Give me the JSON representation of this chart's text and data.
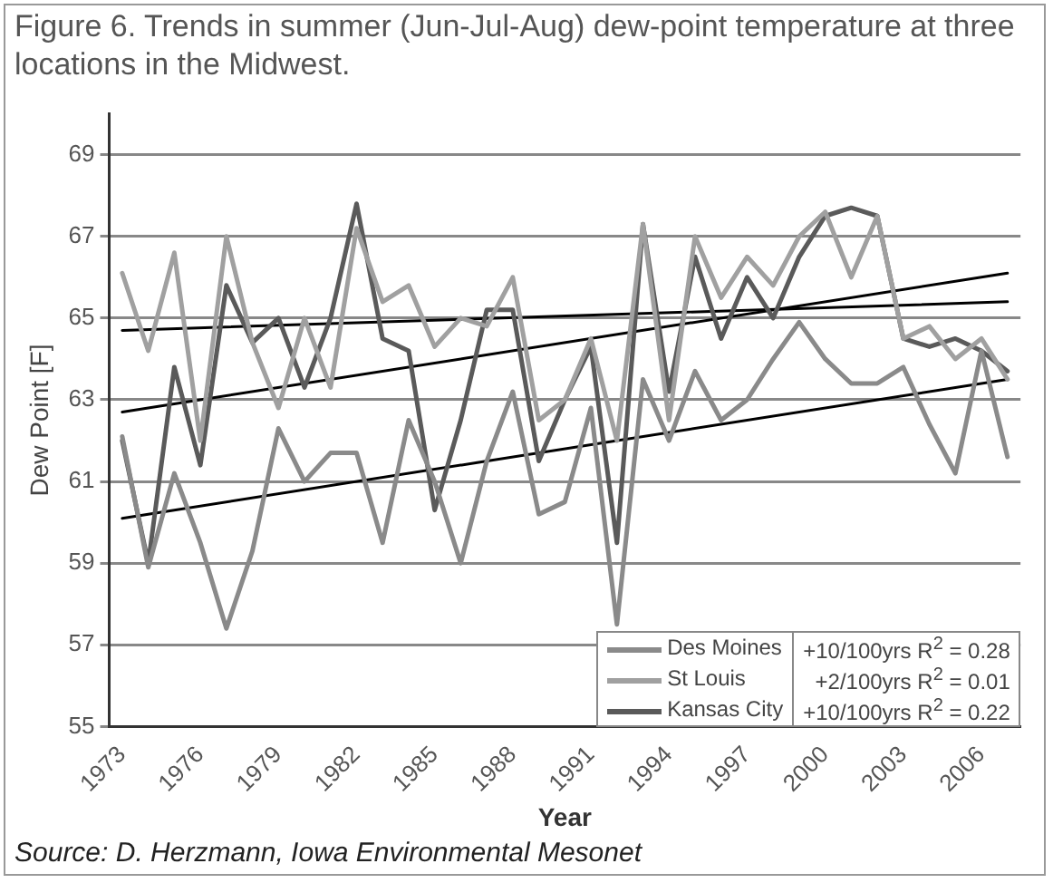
{
  "chart_data": {
    "type": "line",
    "title": "Figure 6.  Trends in summer (Jun-Jul-Aug) dew-point temperature at three locations in the Midwest.",
    "xlabel": "Year",
    "ylabel": "Dew Point [F]",
    "categories": [
      "1973",
      null,
      null,
      "1976",
      null,
      null,
      "1979",
      null,
      null,
      "1982",
      null,
      null,
      "1985",
      null,
      null,
      "1988",
      null,
      null,
      "1991",
      null,
      null,
      "1994",
      null,
      null,
      "1997",
      null,
      null,
      "2000",
      null,
      null,
      "2003",
      null,
      null,
      "2006",
      null
    ],
    "series": [
      {
        "name": "Des Moines",
        "color": "#8a8a8a",
        "values": [
          62.1,
          58.9,
          61.2,
          59.5,
          57.4,
          59.3,
          62.3,
          61.0,
          61.7,
          61.7,
          59.5,
          62.5,
          61.0,
          59.0,
          61.5,
          63.2,
          60.2,
          60.5,
          62.8,
          57.5,
          63.5,
          62.0,
          63.7,
          62.5,
          63.0,
          64.0,
          64.9,
          64.0,
          63.4,
          63.4,
          63.8,
          62.4,
          61.2,
          64.2,
          61.6
        ]
      },
      {
        "name": "St Louis",
        "color": "#a0a0a0",
        "values": [
          66.1,
          64.2,
          66.6,
          62.0,
          67.0,
          64.4,
          62.8,
          65.0,
          63.3,
          67.2,
          65.4,
          65.8,
          64.3,
          65.0,
          64.8,
          66.0,
          62.5,
          63.0,
          64.5,
          62.0,
          67.3,
          62.5,
          67.0,
          65.5,
          66.5,
          65.8,
          67.0,
          67.6,
          66.0,
          67.5,
          64.5,
          64.8,
          64.0,
          64.5,
          63.5
        ]
      },
      {
        "name": "Kansas City",
        "color": "#5a5a5a",
        "values": [
          62.0,
          59.0,
          63.8,
          61.4,
          65.8,
          64.4,
          65.0,
          63.3,
          65.0,
          67.8,
          64.5,
          64.2,
          60.3,
          62.5,
          65.2,
          65.2,
          61.5,
          63.0,
          64.3,
          59.5,
          67.3,
          63.2,
          66.5,
          64.5,
          66.0,
          65.0,
          66.5,
          67.5,
          67.7,
          67.5,
          64.5,
          64.3,
          64.5,
          64.2,
          63.7
        ]
      },
      {
        "color": "#000000",
        "values": [
          60.1,
          null,
          null,
          null,
          null,
          null,
          null,
          null,
          null,
          null,
          null,
          null,
          null,
          null,
          null,
          null,
          null,
          null,
          null,
          null,
          null,
          null,
          null,
          null,
          null,
          null,
          null,
          null,
          null,
          null,
          null,
          null,
          null,
          null,
          63.5
        ]
      },
      {
        "color": "#000000",
        "values": [
          64.7,
          null,
          null,
          null,
          null,
          null,
          null,
          null,
          null,
          null,
          null,
          null,
          null,
          null,
          null,
          null,
          null,
          null,
          null,
          null,
          null,
          null,
          null,
          null,
          null,
          null,
          null,
          null,
          null,
          null,
          null,
          null,
          null,
          null,
          65.4
        ]
      },
      {
        "color": "#000000",
        "values": [
          62.7,
          null,
          null,
          null,
          null,
          null,
          null,
          null,
          null,
          null,
          null,
          null,
          null,
          null,
          null,
          null,
          null,
          null,
          null,
          null,
          null,
          null,
          null,
          null,
          null,
          null,
          null,
          null,
          null,
          null,
          null,
          null,
          null,
          null,
          66.1
        ]
      }
    ],
    "ylim": [
      55,
      70
    ],
    "yticks": [
      55,
      57,
      59,
      61,
      63,
      65,
      67,
      69
    ],
    "grid": "y",
    "legend": "bottom right",
    "marker": "none",
    "line_style": "solid",
    "annotations": [
      "+10/100yrs R$^{2}$ = 0.28",
      "+2/100yrs R$^{2}$ = 0.01",
      "+10/100yrs R$^{2}$ = 0.22",
      "Source: D. Herzmann, Iowa Environmental Mesonet"
    ]
  }
}
